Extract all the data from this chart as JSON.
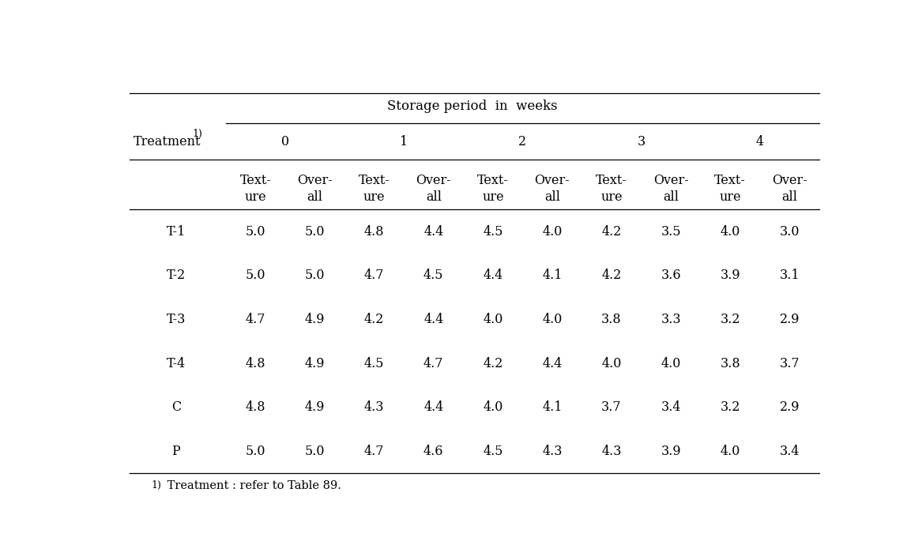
{
  "title": "Storage period  in  weeks",
  "treatment_label": "Treatment",
  "treatment_superscript": "1)",
  "week_labels": [
    "0",
    "1",
    "2",
    "3",
    "4"
  ],
  "sub_labels_line1": [
    "Text-",
    "Over-",
    "Text-",
    "Over-",
    "Text-",
    "Over-",
    "Text-",
    "Over-",
    "Text-",
    "Over-"
  ],
  "sub_labels_line2": [
    "ure",
    "all",
    "ure",
    "all",
    "ure",
    "all",
    "ure",
    "all",
    "ure",
    "all"
  ],
  "treatments": [
    "T-1",
    "T-2",
    "T-3",
    "T-4",
    "C",
    "P"
  ],
  "data": [
    [
      5.0,
      5.0,
      4.8,
      4.4,
      4.5,
      4.0,
      4.2,
      3.5,
      4.0,
      3.0
    ],
    [
      5.0,
      5.0,
      4.7,
      4.5,
      4.4,
      4.1,
      4.2,
      3.6,
      3.9,
      3.1
    ],
    [
      4.7,
      4.9,
      4.2,
      4.4,
      4.0,
      4.0,
      3.8,
      3.3,
      3.2,
      2.9
    ],
    [
      4.8,
      4.9,
      4.5,
      4.7,
      4.2,
      4.4,
      4.0,
      4.0,
      3.8,
      3.7
    ],
    [
      4.8,
      4.9,
      4.3,
      4.4,
      4.0,
      4.1,
      3.7,
      3.4,
      3.2,
      2.9
    ],
    [
      5.0,
      5.0,
      4.7,
      4.6,
      4.5,
      4.3,
      4.3,
      3.9,
      4.0,
      3.4
    ]
  ],
  "footnote_super": "1)",
  "footnote_text": " Treatment : refer to Table 89.",
  "bg_color": "#ffffff",
  "text_color": "#000000",
  "font_size": 11.5,
  "title_font_size": 12
}
